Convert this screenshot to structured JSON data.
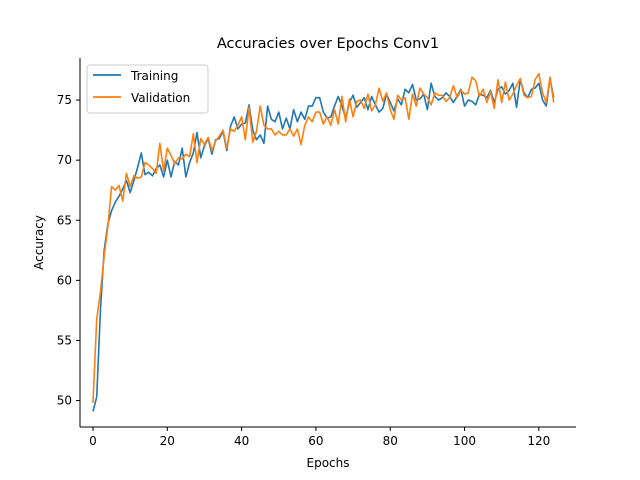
{
  "chart_data": {
    "type": "line",
    "title": "Accuracies over Epochs Conv1",
    "xlabel": "Epochs",
    "ylabel": "Accuracy",
    "xlim": [
      -3.5,
      130
    ],
    "ylim": [
      47.8,
      78.5
    ],
    "xticks": [
      0,
      20,
      40,
      60,
      80,
      100,
      120
    ],
    "yticks": [
      50,
      55,
      60,
      65,
      70,
      75
    ],
    "grid": false,
    "legend_position": "upper-left",
    "series": [
      {
        "name": "Training",
        "color": "#1f77b4",
        "x": [
          0,
          1,
          2,
          3,
          4,
          5,
          6,
          7,
          8,
          9,
          10,
          11,
          12,
          13,
          14,
          15,
          16,
          17,
          18,
          19,
          20,
          21,
          22,
          23,
          24,
          25,
          26,
          27,
          28,
          29,
          30,
          31,
          32,
          33,
          34,
          35,
          36,
          37,
          38,
          39,
          40,
          41,
          42,
          43,
          44,
          45,
          46,
          47,
          48,
          49,
          50,
          51,
          52,
          53,
          54,
          55,
          56,
          57,
          58,
          59,
          60,
          61,
          62,
          63,
          64,
          65,
          66,
          67,
          68,
          69,
          70,
          71,
          72,
          73,
          74,
          75,
          76,
          77,
          78,
          79,
          80,
          81,
          82,
          83,
          84,
          85,
          86,
          87,
          88,
          89,
          90,
          91,
          92,
          93,
          94,
          95,
          96,
          97,
          98,
          99,
          100,
          101,
          102,
          103,
          104,
          105,
          106,
          107,
          108,
          109,
          110,
          111,
          112,
          113,
          114,
          115,
          116,
          117,
          118,
          119,
          120,
          121,
          122,
          123,
          124
        ],
        "values": [
          49.1,
          50.3,
          57.5,
          62.5,
          64.7,
          65.8,
          66.5,
          67.0,
          67.6,
          68.3,
          67.3,
          68.3,
          69.4,
          70.6,
          68.8,
          69.0,
          68.7,
          69.3,
          69.6,
          68.6,
          70.0,
          68.6,
          69.9,
          69.6,
          71.0,
          68.6,
          69.8,
          70.6,
          72.3,
          70.2,
          71.2,
          71.8,
          70.5,
          71.7,
          71.8,
          72.4,
          70.8,
          72.8,
          73.6,
          72.6,
          73.0,
          73.1,
          74.6,
          72.5,
          71.7,
          72.1,
          71.4,
          74.5,
          73.4,
          73.2,
          74.0,
          72.6,
          73.5,
          72.6,
          74.2,
          73.2,
          74.0,
          73.4,
          74.5,
          74.5,
          75.2,
          75.2,
          74.0,
          73.5,
          73.6,
          74.5,
          75.3,
          74.5,
          73.5,
          74.8,
          75.4,
          74.4,
          74.8,
          75.2,
          74.2,
          75.3,
          74.6,
          74.0,
          74.3,
          75.5,
          74.8,
          74.1,
          75.1,
          74.6,
          75.9,
          75.6,
          76.3,
          75.0,
          75.1,
          75.5,
          74.2,
          76.4,
          75.3,
          75.0,
          75.2,
          75.6,
          75.3,
          74.8,
          75.3,
          75.9,
          74.5,
          75.0,
          74.9,
          74.6,
          75.5,
          75.4,
          75.2,
          75.8,
          74.8,
          75.9,
          76.1,
          75.5,
          75.8,
          76.4,
          74.4,
          76.7,
          75.6,
          75.2,
          75.9,
          76.0,
          76.4,
          75.0,
          74.5,
          76.8,
          75.2
        ]
      },
      {
        "name": "Validation",
        "color": "#ff7f0e",
        "x": [
          0,
          1,
          2,
          3,
          4,
          5,
          6,
          7,
          8,
          9,
          10,
          11,
          12,
          13,
          14,
          15,
          16,
          17,
          18,
          19,
          20,
          21,
          22,
          23,
          24,
          25,
          26,
          27,
          28,
          29,
          30,
          31,
          32,
          33,
          34,
          35,
          36,
          37,
          38,
          39,
          40,
          41,
          42,
          43,
          44,
          45,
          46,
          47,
          48,
          49,
          50,
          51,
          52,
          53,
          54,
          55,
          56,
          57,
          58,
          59,
          60,
          61,
          62,
          63,
          64,
          65,
          66,
          67,
          68,
          69,
          70,
          71,
          72,
          73,
          74,
          75,
          76,
          77,
          78,
          79,
          80,
          81,
          82,
          83,
          84,
          85,
          86,
          87,
          88,
          89,
          90,
          91,
          92,
          93,
          94,
          95,
          96,
          97,
          98,
          99,
          100,
          101,
          102,
          103,
          104,
          105,
          106,
          107,
          108,
          109,
          110,
          111,
          112,
          113,
          114,
          115,
          116,
          117,
          118,
          119,
          120,
          121,
          122,
          123,
          124
        ],
        "values": [
          49.8,
          56.8,
          59.0,
          62.0,
          64.5,
          67.8,
          67.5,
          67.9,
          66.6,
          68.9,
          67.8,
          68.7,
          68.5,
          68.6,
          69.8,
          69.6,
          69.3,
          68.9,
          71.4,
          69.1,
          71.0,
          70.4,
          69.7,
          70.2,
          70.1,
          70.5,
          70.3,
          72.2,
          69.8,
          71.8,
          71.3,
          71.9,
          70.8,
          71.6,
          72.0,
          72.5,
          71.0,
          72.6,
          72.4,
          72.9,
          73.6,
          71.7,
          74.4,
          71.5,
          72.4,
          74.5,
          72.9,
          72.6,
          72.6,
          72.1,
          72.4,
          72.1,
          72.1,
          72.6,
          72.0,
          72.6,
          71.3,
          72.9,
          73.6,
          73.2,
          74.0,
          74.0,
          73.0,
          73.6,
          72.9,
          74.2,
          73.0,
          75.3,
          73.2,
          75.1,
          73.6,
          74.9,
          75.0,
          74.3,
          75.5,
          74.1,
          74.6,
          76.0,
          74.9,
          75.6,
          74.2,
          73.4,
          75.4,
          75.0,
          75.2,
          73.4,
          75.5,
          74.5,
          76.0,
          75.5,
          75.2,
          74.6,
          75.6,
          75.4,
          75.4,
          74.9,
          75.2,
          76.2,
          75.2,
          75.8,
          75.5,
          75.6,
          76.9,
          76.6,
          75.3,
          75.9,
          74.8,
          75.7,
          74.3,
          76.7,
          74.8,
          76.5,
          75.0,
          75.5,
          76.2,
          76.8,
          75.4,
          75.2,
          75.3,
          76.7,
          77.2,
          75.6,
          74.8,
          76.9,
          74.8
        ]
      }
    ]
  }
}
